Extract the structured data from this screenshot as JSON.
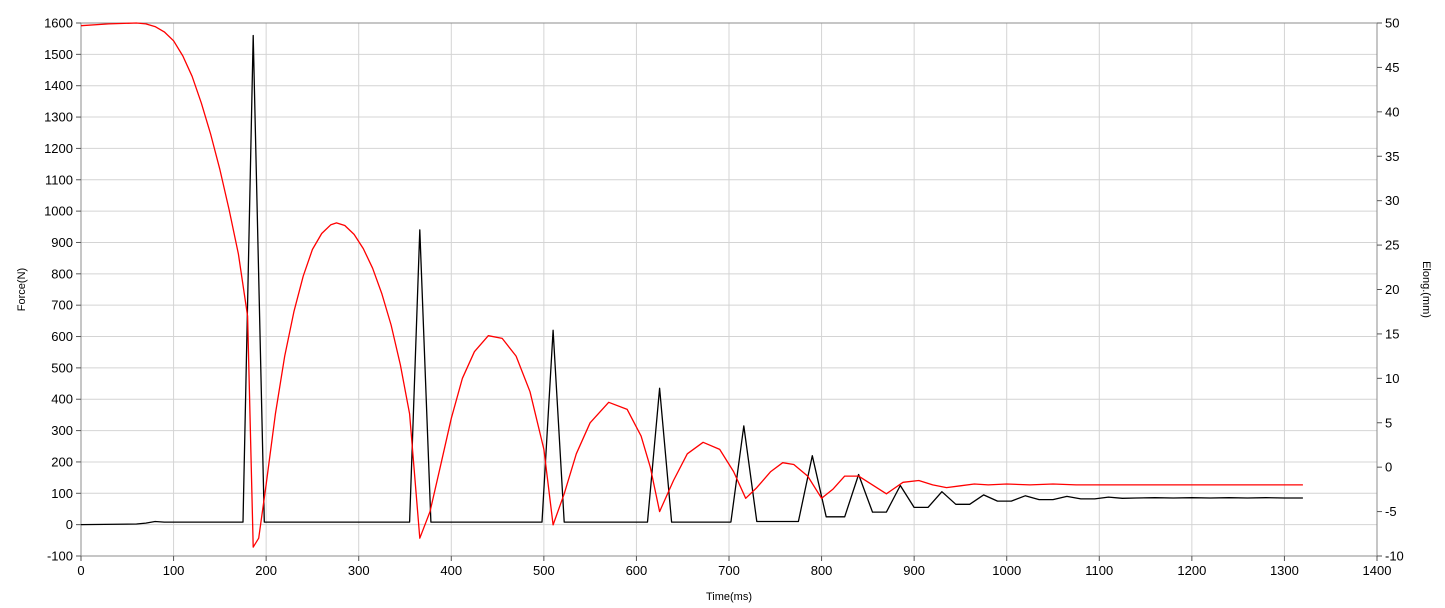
{
  "chart_data": {
    "type": "line",
    "title": "",
    "xlabel": "Time(ms)",
    "ylabel_left": "Force(N)",
    "ylabel_right": "Elong.(mm)",
    "xlim": [
      0,
      1400
    ],
    "ylim_left": [
      -100,
      1600
    ],
    "ylim_right": [
      -10,
      50
    ],
    "grid": true,
    "x_ticks": [
      "0",
      "100",
      "200",
      "300",
      "400",
      "500",
      "600",
      "700",
      "800",
      "900",
      "1000",
      "1100",
      "1200",
      "1300",
      "1400"
    ],
    "y_left_ticks": [
      "-100",
      "0",
      "100",
      "200",
      "300",
      "400",
      "500",
      "600",
      "700",
      "800",
      "900",
      "1000",
      "1100",
      "1200",
      "1300",
      "1400",
      "1500",
      "1600"
    ],
    "y_right_ticks": [
      "-10",
      "-5",
      "0",
      "5",
      "10",
      "15",
      "20",
      "25",
      "30",
      "35",
      "40",
      "45",
      "50"
    ],
    "series": [
      {
        "axis": "left",
        "color": "#000000",
        "x": [
          0,
          60,
          70,
          80,
          90,
          100,
          175,
          186,
          198,
          355,
          366,
          378,
          498,
          510,
          522,
          612,
          625,
          638,
          702,
          716,
          730,
          775,
          790,
          805,
          825,
          840,
          855,
          870,
          885,
          900,
          915,
          930,
          945,
          960,
          975,
          990,
          1005,
          1020,
          1035,
          1050,
          1065,
          1080,
          1095,
          1110,
          1125,
          1140,
          1160,
          1180,
          1200,
          1220,
          1240,
          1260,
          1280,
          1300,
          1320
        ],
        "y": [
          0,
          2,
          5,
          10,
          8,
          8,
          8,
          1560,
          8,
          8,
          940,
          8,
          8,
          620,
          8,
          8,
          435,
          8,
          8,
          315,
          10,
          10,
          220,
          25,
          25,
          160,
          40,
          40,
          125,
          55,
          55,
          105,
          65,
          65,
          95,
          75,
          75,
          92,
          80,
          80,
          90,
          82,
          82,
          88,
          84,
          85,
          86,
          85,
          86,
          85,
          86,
          85,
          86,
          85,
          85
        ]
      },
      {
        "axis": "right",
        "color": "#ff0000",
        "x": [
          0,
          30,
          60,
          70,
          80,
          90,
          100,
          110,
          120,
          130,
          140,
          150,
          160,
          170,
          180,
          186,
          192,
          200,
          210,
          220,
          230,
          240,
          250,
          260,
          270,
          276,
          285,
          295,
          305,
          315,
          325,
          335,
          345,
          355,
          366,
          377,
          388,
          400,
          412,
          425,
          440,
          455,
          470,
          485,
          500,
          510,
          522,
          535,
          550,
          570,
          590,
          605,
          615,
          625,
          640,
          655,
          672,
          690,
          705,
          718,
          730,
          745,
          758,
          770,
          785,
          800,
          812,
          825,
          840,
          855,
          870,
          888,
          905,
          920,
          935,
          950,
          965,
          980,
          1000,
          1025,
          1050,
          1075,
          1100,
          1150,
          1200,
          1250,
          1300,
          1320
        ],
        "y": [
          49.7,
          49.9,
          50,
          49.9,
          49.6,
          49,
          48,
          46.3,
          44,
          41,
          37.5,
          33.5,
          29,
          24,
          17,
          -9,
          -8,
          -2,
          6,
          12.5,
          17.5,
          21.5,
          24.5,
          26.3,
          27.3,
          27.5,
          27.2,
          26.2,
          24.6,
          22.4,
          19.5,
          16,
          11.5,
          6,
          -8,
          -5,
          0,
          5.5,
          10,
          13,
          14.8,
          14.5,
          12.5,
          8.5,
          2,
          -6.5,
          -3,
          1.5,
          5,
          7.3,
          6.5,
          3.5,
          0,
          -5,
          -1.5,
          1.5,
          2.8,
          2,
          -0.5,
          -3.5,
          -2.3,
          -0.5,
          0.5,
          0.3,
          -1,
          -3.5,
          -2.5,
          -1,
          -1,
          -2,
          -3,
          -1.7,
          -1.5,
          -2,
          -2.3,
          -2.1,
          -1.9,
          -2,
          -1.9,
          -2,
          -1.9,
          -2,
          -2,
          -2,
          -2,
          -2,
          -2,
          -2
        ]
      }
    ]
  }
}
